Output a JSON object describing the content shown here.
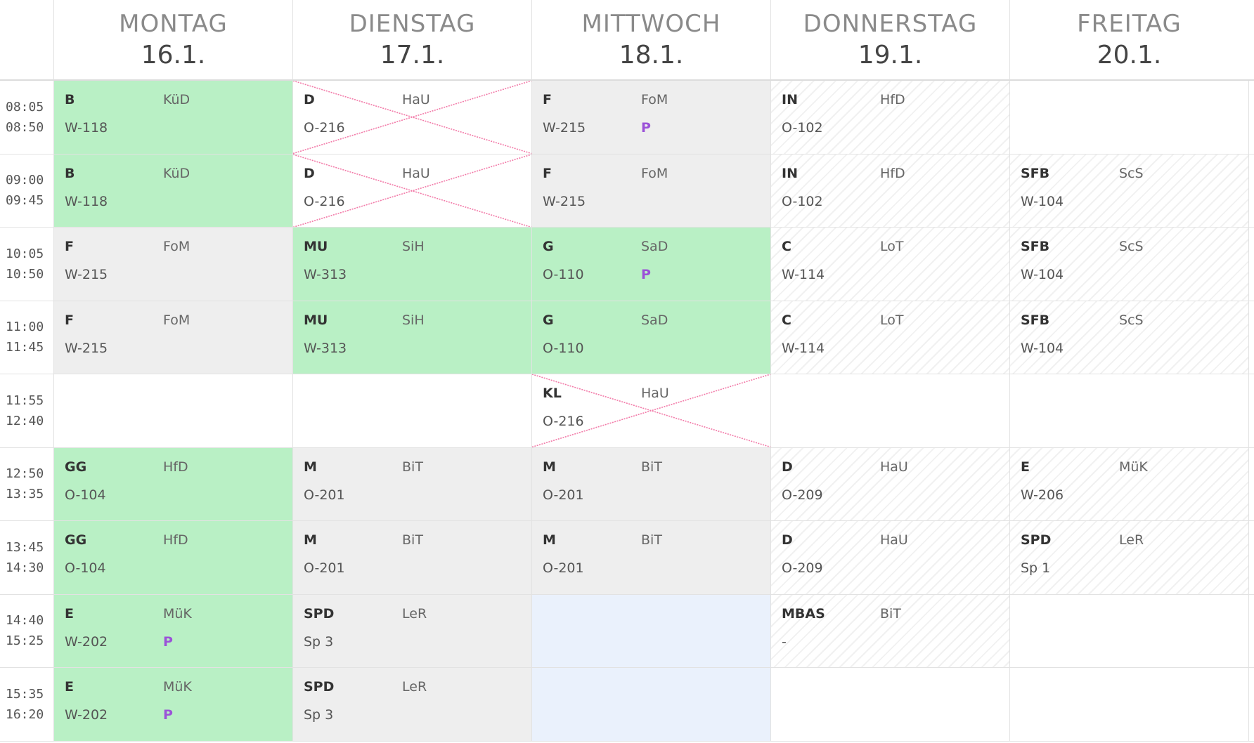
{
  "days": [
    {
      "name": "MONTAG",
      "date": "16.1."
    },
    {
      "name": "DIENSTAG",
      "date": "17.1."
    },
    {
      "name": "MITTWOCH",
      "date": "18.1."
    },
    {
      "name": "DONNERSTAG",
      "date": "19.1."
    },
    {
      "name": "FREITAG",
      "date": "20.1."
    }
  ],
  "periods": [
    {
      "start": "08:05",
      "end": "08:50"
    },
    {
      "start": "09:00",
      "end": "09:45"
    },
    {
      "start": "10:05",
      "end": "10:50"
    },
    {
      "start": "11:00",
      "end": "11:45"
    },
    {
      "start": "11:55",
      "end": "12:40"
    },
    {
      "start": "12:50",
      "end": "13:35"
    },
    {
      "start": "13:45",
      "end": "14:30"
    },
    {
      "start": "14:40",
      "end": "15:25"
    },
    {
      "start": "15:35",
      "end": "16:20"
    }
  ],
  "colors": {
    "green": "#b9f0c5",
    "gray": "#eeeeee",
    "blue": "#eaf1fc",
    "cancel": "#f27aa8",
    "p": "#9b52d8"
  },
  "cells": [
    [
      {
        "style": "green",
        "subject": "B",
        "teacher": "KüD",
        "room": "W-118"
      },
      {
        "style": "green",
        "subject": "B",
        "teacher": "KüD",
        "room": "W-118"
      },
      {
        "style": "gray",
        "subject": "F",
        "teacher": "FoM",
        "room": "W-215"
      },
      {
        "style": "gray",
        "subject": "F",
        "teacher": "FoM",
        "room": "W-215"
      },
      {
        "style": "white"
      },
      {
        "style": "green",
        "subject": "GG",
        "teacher": "HfD",
        "room": "O-104"
      },
      {
        "style": "green",
        "subject": "GG",
        "teacher": "HfD",
        "room": "O-104"
      },
      {
        "style": "green",
        "subject": "E",
        "teacher": "MüK",
        "room": "W-202",
        "p": "P"
      },
      {
        "style": "green",
        "subject": "E",
        "teacher": "MüK",
        "room": "W-202",
        "p": "P"
      }
    ],
    [
      {
        "style": "white",
        "subject": "D",
        "teacher": "HaU",
        "room": "O-216",
        "cancelled": true
      },
      {
        "style": "white",
        "subject": "D",
        "teacher": "HaU",
        "room": "O-216",
        "cancelled": true
      },
      {
        "style": "green",
        "subject": "MU",
        "teacher": "SiH",
        "room": "W-313"
      },
      {
        "style": "green",
        "subject": "MU",
        "teacher": "SiH",
        "room": "W-313"
      },
      {
        "style": "white"
      },
      {
        "style": "gray",
        "subject": "M",
        "teacher": "BiT",
        "room": "O-201"
      },
      {
        "style": "gray",
        "subject": "M",
        "teacher": "BiT",
        "room": "O-201"
      },
      {
        "style": "gray",
        "subject": "SPD",
        "teacher": "LeR",
        "room": "Sp 3"
      },
      {
        "style": "gray",
        "subject": "SPD",
        "teacher": "LeR",
        "room": "Sp 3"
      }
    ],
    [
      {
        "style": "gray",
        "subject": "F",
        "teacher": "FoM",
        "room": "W-215",
        "p": "P"
      },
      {
        "style": "gray",
        "subject": "F",
        "teacher": "FoM",
        "room": "W-215"
      },
      {
        "style": "green",
        "subject": "G",
        "teacher": "SaD",
        "room": "O-110",
        "p": "P"
      },
      {
        "style": "green",
        "subject": "G",
        "teacher": "SaD",
        "room": "O-110"
      },
      {
        "style": "white",
        "subject": "KL",
        "teacher": "HaU",
        "room": "O-216",
        "cancelled": true
      },
      {
        "style": "gray",
        "subject": "M",
        "teacher": "BiT",
        "room": "O-201"
      },
      {
        "style": "gray",
        "subject": "M",
        "teacher": "BiT",
        "room": "O-201"
      },
      {
        "style": "blue"
      },
      {
        "style": "blue"
      }
    ],
    [
      {
        "style": "hatch",
        "subject": "IN",
        "teacher": "HfD",
        "room": "O-102"
      },
      {
        "style": "hatch",
        "subject": "IN",
        "teacher": "HfD",
        "room": "O-102"
      },
      {
        "style": "hatch",
        "subject": "C",
        "teacher": "LoT",
        "room": "W-114"
      },
      {
        "style": "hatch",
        "subject": "C",
        "teacher": "LoT",
        "room": "W-114"
      },
      {
        "style": "white"
      },
      {
        "style": "hatch",
        "subject": "D",
        "teacher": "HaU",
        "room": "O-209"
      },
      {
        "style": "hatch",
        "subject": "D",
        "teacher": "HaU",
        "room": "O-209"
      },
      {
        "style": "hatch",
        "subject": "MBAS",
        "teacher": "BiT",
        "room": "-"
      },
      {
        "style": "white"
      }
    ],
    [
      {
        "style": "white"
      },
      {
        "style": "hatch",
        "subject": "SFB",
        "teacher": "ScS",
        "room": "W-104"
      },
      {
        "style": "hatch",
        "subject": "SFB",
        "teacher": "ScS",
        "room": "W-104"
      },
      {
        "style": "hatch",
        "subject": "SFB",
        "teacher": "ScS",
        "room": "W-104"
      },
      {
        "style": "white"
      },
      {
        "style": "hatch",
        "subject": "E",
        "teacher": "MüK",
        "room": "W-206"
      },
      {
        "style": "hatch",
        "subject": "SPD",
        "teacher": "LeR",
        "room": "Sp 1"
      },
      {
        "style": "white"
      },
      {
        "style": "white"
      }
    ]
  ]
}
